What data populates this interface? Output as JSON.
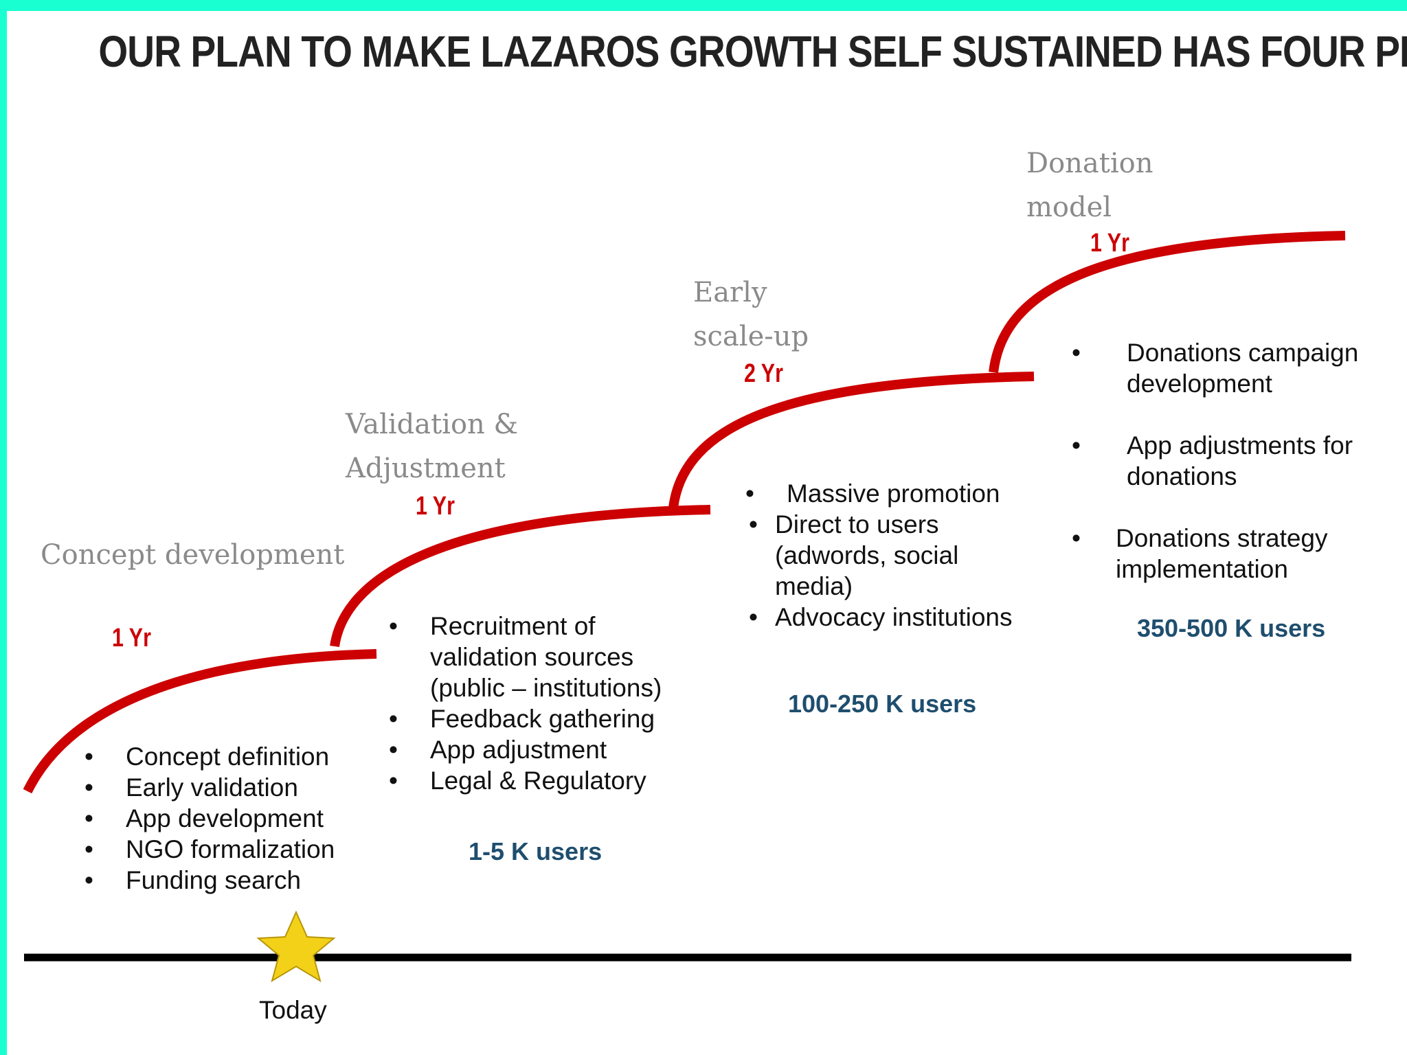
{
  "title": "OUR PLAN TO MAKE LAZAROS GROWTH SELF SUSTAINED HAS FOUR PHASES",
  "colors": {
    "frame": "#1affd1",
    "curve": "#cc0000",
    "users": "#1e4e6e"
  },
  "timeline_marker": {
    "icon": "star-icon",
    "label": "Today"
  },
  "phases": [
    {
      "name": "Concept development",
      "duration": "1 Yr",
      "bullets": [
        "Concept definition",
        "Early validation",
        "App development",
        "NGO formalization",
        "Funding search"
      ],
      "users": ""
    },
    {
      "name_line1": "Validation &",
      "name_line2": "Adjustment",
      "duration": "1 Yr",
      "bullets": [
        "Recruitment of validation sources (public – institutions)",
        "Feedback gathering",
        "App adjustment",
        "Legal & Regulatory"
      ],
      "users": "1-5 K users"
    },
    {
      "name_line1": "Early",
      "name_line2": "scale-up",
      "duration": "2 Yr",
      "bullet_main": "Massive promotion",
      "sub_bullets": [
        "Direct to users (adwords, social media)",
        "Advocacy institutions"
      ],
      "users": "100-250 K users"
    },
    {
      "name_line1": "Donation",
      "name_line2": "model",
      "duration": "1 Yr",
      "bullets": [
        "Donations campaign development",
        "App adjustments for donations",
        "Donations strategy implementation"
      ],
      "users": "350-500 K users"
    }
  ]
}
